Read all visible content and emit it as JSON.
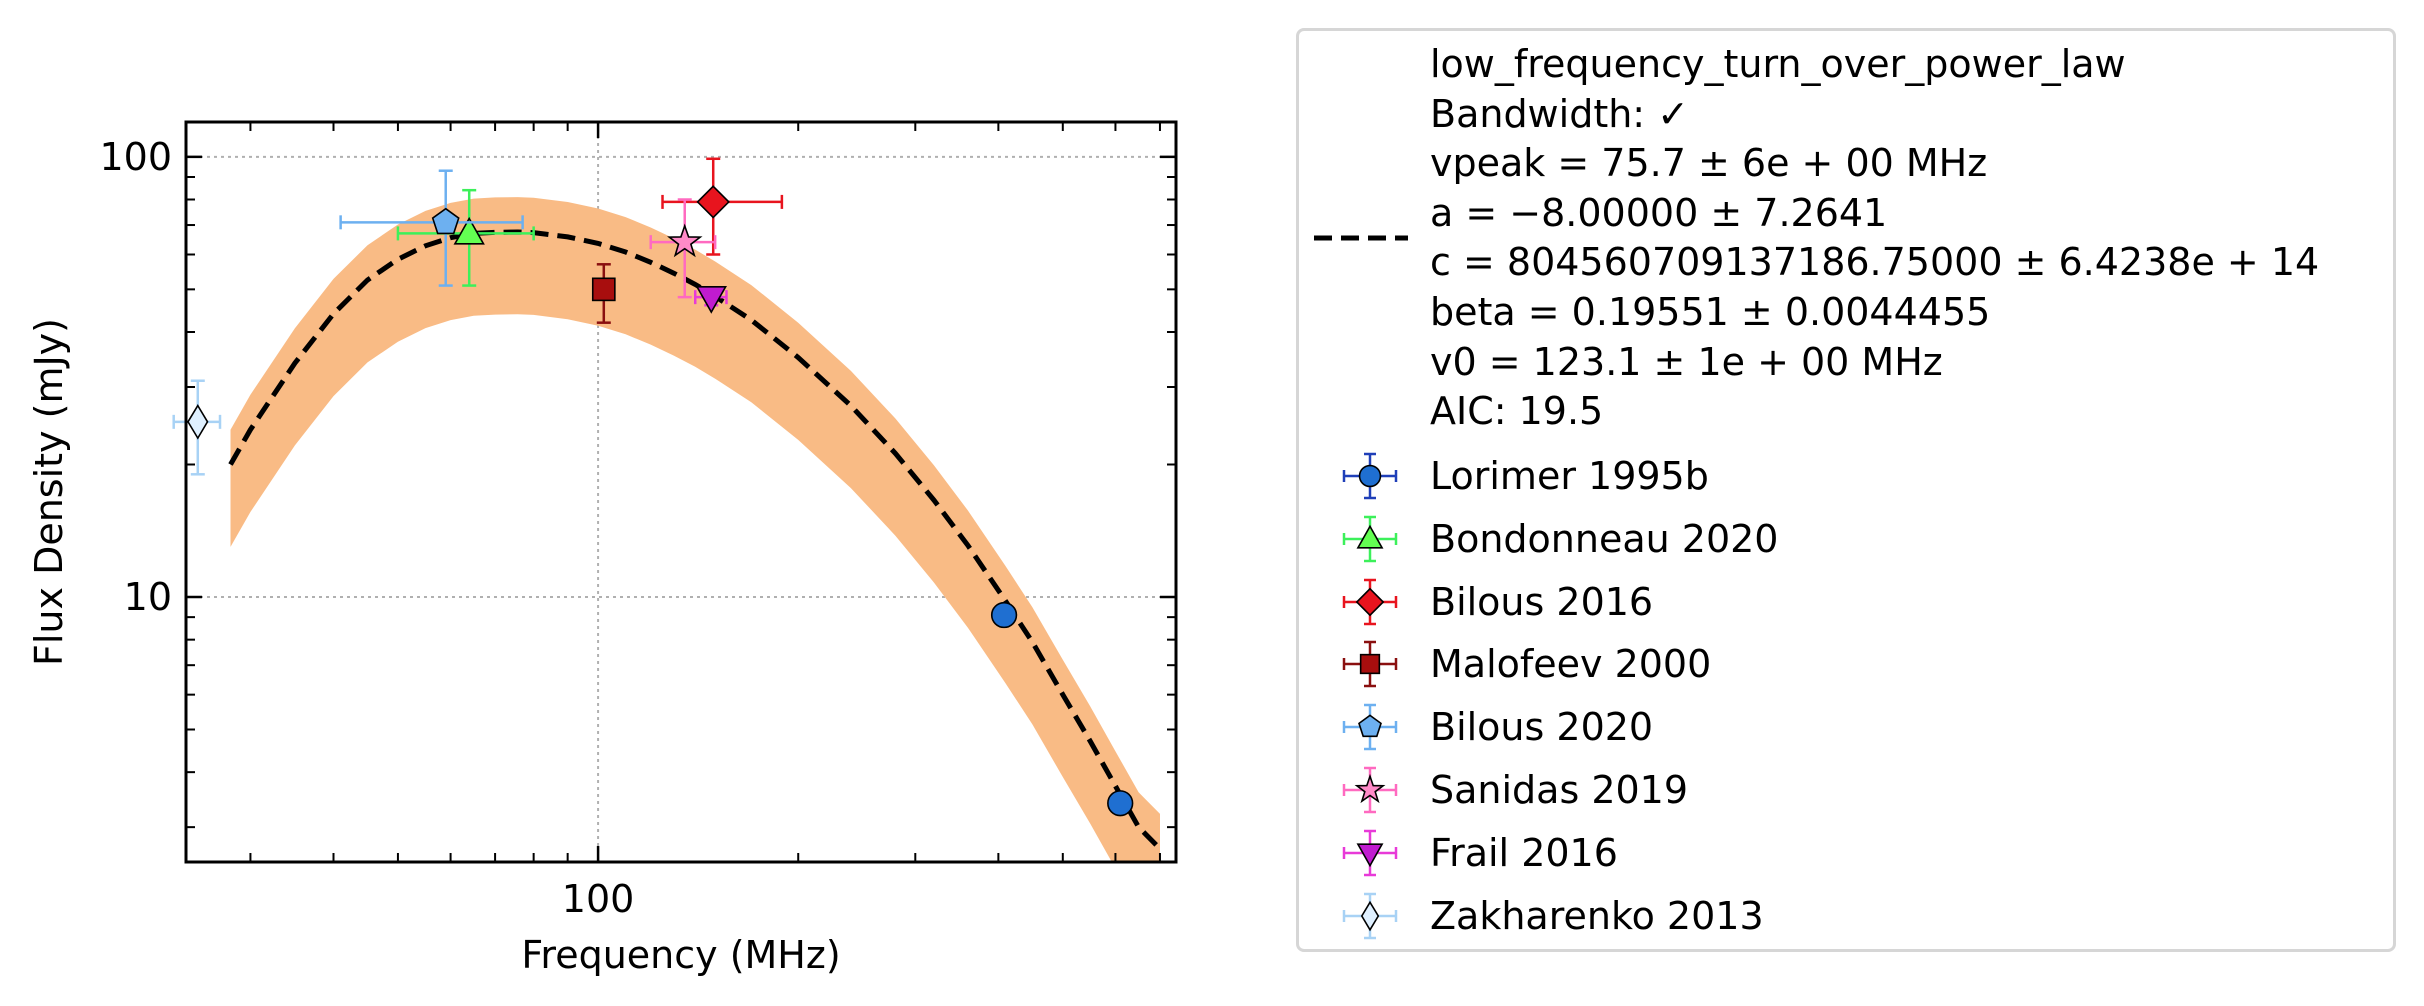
{
  "chart_data": {
    "type": "scatter",
    "x_scale": "log",
    "y_scale": "log",
    "xlim": [
      24,
      740
    ],
    "ylim": [
      2.5,
      120
    ],
    "xlabel": "Frequency (MHz)",
    "ylabel": "Flux Density (mJy)",
    "x_ticks": [
      100
    ],
    "x_tick_labels": [
      "100"
    ],
    "y_ticks": [
      10,
      100
    ],
    "y_tick_labels": [
      "10",
      "100"
    ],
    "grid": true,
    "legend_position": "outside-right",
    "fit": {
      "name": "low_frequency_turn_over_power_law",
      "bandwidth": "Bandwidth: ✓",
      "params": [
        "vpeak = 75.7 ± 6e + 00 MHz",
        "a = −8.00000 ± 7.2641",
        "c = 804560709137186.75000 ± 6.4238e + 14",
        "beta = 0.19551 ± 0.0044455",
        "v0 = 123.1 ± 1e + 00 MHz",
        "AIC: 19.5"
      ],
      "curve_x": [
        28,
        30,
        35,
        40,
        45,
        50,
        55,
        60,
        65,
        70,
        75.7,
        80,
        90,
        100,
        110,
        120,
        130,
        140,
        150,
        170,
        200,
        240,
        280,
        320,
        360,
        410,
        450,
        500,
        550,
        600,
        650,
        700
      ],
      "curve_y": [
        20,
        24,
        34,
        44,
        52.5,
        58.5,
        62.8,
        65.5,
        67,
        67.4,
        67.5,
        67.3,
        65.8,
        63.6,
        60.8,
        57.6,
        54.4,
        51.3,
        48.2,
        42.6,
        35,
        27.2,
        21.2,
        16.6,
        13.1,
        9.8,
        7.9,
        6.0,
        4.7,
        3.72,
        3.0,
        2.68
      ],
      "band_lower_factor": 0.65,
      "band_upper_factor": 1.2,
      "line_color": "#000000",
      "band_color": "#f9bb85"
    },
    "series": [
      {
        "name": "Lorimer 1995b",
        "marker": "circle",
        "color": "#1f6fd1",
        "ecolor": "#1f3fb8",
        "points": [
          {
            "x": 408,
            "y": 9.1,
            "xerr": [
              0,
              0
            ],
            "yerr": [
              0,
              0
            ]
          },
          {
            "x": 610,
            "y": 3.4,
            "xerr": [
              0,
              0
            ],
            "yerr": [
              0,
              0
            ]
          }
        ]
      },
      {
        "name": "Bondonneau 2020",
        "marker": "triangle-up",
        "color": "#63ff52",
        "ecolor": "#3cf05a",
        "points": [
          {
            "x": 64,
            "y": 67,
            "xerr": [
              14,
              16
            ],
            "yerr": [
              16,
              17
            ]
          }
        ]
      },
      {
        "name": "Bilous 2016",
        "marker": "diamond",
        "color": "#e8141e",
        "ecolor": "#e8141e",
        "points": [
          {
            "x": 149,
            "y": 79,
            "xerr": [
              24,
              40
            ],
            "yerr": [
              19,
              20
            ]
          }
        ]
      },
      {
        "name": "Malofeev 2000",
        "marker": "square",
        "color": "#a80e0e",
        "ecolor": "#8a0f0f",
        "points": [
          {
            "x": 102,
            "y": 50,
            "xerr": [
              0,
              0
            ],
            "yerr": [
              8,
              7
            ]
          }
        ]
      },
      {
        "name": "Bilous 2020",
        "marker": "pentagon",
        "color": "#6db0f0",
        "ecolor": "#6db0f0",
        "points": [
          {
            "x": 59,
            "y": 71,
            "xerr": [
              18,
              18
            ],
            "yerr": [
              20,
              22
            ]
          }
        ]
      },
      {
        "name": "Sanidas 2019",
        "marker": "star",
        "color": "#ff8ac8",
        "ecolor": "#ff6ac0",
        "points": [
          {
            "x": 135,
            "y": 64,
            "xerr": [
              15,
              15
            ],
            "yerr": [
              16,
              16
            ]
          }
        ]
      },
      {
        "name": "Frail 2016",
        "marker": "triangle-down",
        "color": "#c01bd0",
        "ecolor": "#e83ad8",
        "points": [
          {
            "x": 148,
            "y": 48,
            "xerr": [
              8,
              8
            ],
            "yerr": [
              2,
              2
            ]
          }
        ]
      },
      {
        "name": "Zakharenko 2013",
        "marker": "thin-diamond",
        "color": "#dff0ff",
        "ecolor": "#a8d2f5",
        "points": [
          {
            "x": 25,
            "y": 25,
            "xerr": [
              2,
              2
            ],
            "yerr": [
              6,
              6
            ]
          }
        ]
      }
    ]
  }
}
